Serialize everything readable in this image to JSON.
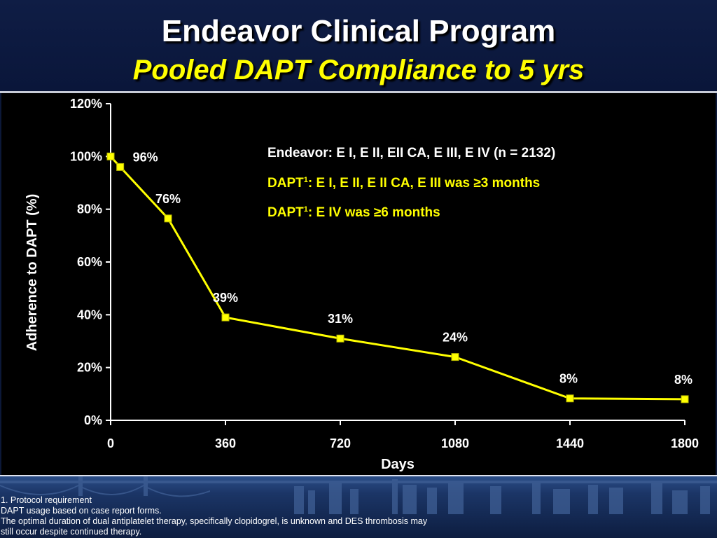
{
  "slide": {
    "title": "Endeavor Clinical Program",
    "subtitle": "Pooled DAPT Compliance to 5 yrs",
    "title_color": "#ffffff",
    "subtitle_color": "#ffff00",
    "background": "#0c1838"
  },
  "chart_data": {
    "type": "line",
    "xlabel": "Days",
    "ylabel": "Adherence to DAPT (%)",
    "x_ticks": [
      0,
      360,
      720,
      1080,
      1440,
      1800
    ],
    "y_ticks": [
      "0%",
      "20%",
      "40%",
      "60%",
      "80%",
      "100%",
      "120%"
    ],
    "xlim": [
      0,
      1800
    ],
    "ylim": [
      0,
      120
    ],
    "grid": false,
    "series": [
      {
        "color": "#ffff00",
        "points": [
          {
            "x": 0,
            "y": 100
          },
          {
            "x": 30,
            "y": 96
          },
          {
            "x": 180,
            "y": 76.5
          },
          {
            "x": 360,
            "y": 39
          },
          {
            "x": 720,
            "y": 31
          },
          {
            "x": 1080,
            "y": 24
          },
          {
            "x": 1440,
            "y": 8.3
          },
          {
            "x": 1800,
            "y": 8
          }
        ]
      }
    ],
    "data_labels": [
      {
        "text": "96%",
        "x": 30,
        "y": 96
      },
      {
        "text": "76%",
        "x": 180,
        "y": 76.5
      },
      {
        "text": "39%",
        "x": 360,
        "y": 39
      },
      {
        "text": "31%",
        "x": 720,
        "y": 31
      },
      {
        "text": "24%",
        "x": 1080,
        "y": 24
      },
      {
        "text": "8%",
        "x": 1440,
        "y": 8.3
      },
      {
        "text": "8%",
        "x": 1800,
        "y": 8
      }
    ]
  },
  "annotations": {
    "line1": "Endeavor: E I, E II, EII CA, E III, E IV (n = 2132)",
    "line2_pre": "DAPT",
    "line2_sup": "1",
    "line2_post": ": E I, E II, E II CA, E III was ≥3 months",
    "line3_pre": "DAPT",
    "line3_sup": "1",
    "line3_post": ": E IV was ≥6 months",
    "line1_color": "#ffffff",
    "highlight_color": "#ffff00"
  },
  "footnotes": {
    "note1": "1. Protocol requirement",
    "note2": "DAPT usage based on case report forms.",
    "note3": "The optimal duration of dual antiplatelet therapy, specifically clopidogrel, is unknown and DES thrombosis may",
    "note4": "still occur despite continued therapy."
  }
}
